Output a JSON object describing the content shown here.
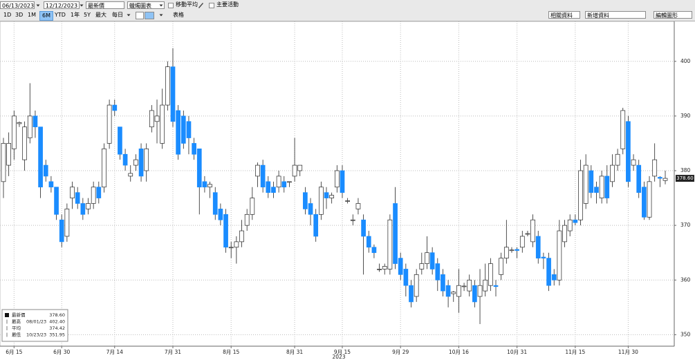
{
  "toolbar": {
    "start_date": "06/13/2023",
    "end_date": "12/12/2023",
    "field": "最新價",
    "chart_style": "蠟燭圖表",
    "options": [
      "移動平均",
      "主要活動"
    ],
    "periods": [
      "1D",
      "3D",
      "1M",
      "6M",
      "YTD",
      "1年",
      "5Y",
      "最大"
    ],
    "selected_period": "6M",
    "frequency": "每日",
    "table_button": "表格",
    "right_buttons": [
      "相關資料",
      "新增資料",
      "編輯圖形"
    ]
  },
  "chart_data": {
    "type": "candlestick",
    "categories": [
      null,
      null,
      "6月 15",
      null,
      null,
      null,
      null,
      null,
      null,
      null,
      null,
      "6月 30",
      null,
      null,
      null,
      null,
      null,
      null,
      null,
      null,
      null,
      "7月 14",
      null,
      null,
      null,
      null,
      null,
      null,
      null,
      null,
      null,
      null,
      "7月 31",
      null,
      null,
      null,
      null,
      null,
      null,
      null,
      null,
      null,
      null,
      "8月 15",
      null,
      null,
      null,
      null,
      null,
      null,
      null,
      null,
      null,
      null,
      null,
      "8月 31",
      null,
      null,
      null,
      null,
      null,
      null,
      null,
      null,
      "9月 15",
      null,
      null,
      null,
      null,
      null,
      null,
      null,
      null,
      null,
      null,
      "9月 29",
      null,
      null,
      null,
      null,
      null,
      null,
      null,
      null,
      null,
      null,
      "10月 16",
      null,
      null,
      null,
      null,
      null,
      null,
      null,
      null,
      null,
      null,
      "10月 31",
      null,
      null,
      null,
      null,
      null,
      null,
      null,
      null,
      null,
      null,
      "11月 15",
      null,
      null,
      null,
      null,
      null,
      null,
      null,
      null,
      null,
      "11月 30",
      null,
      null,
      null,
      null,
      null,
      null,
      null
    ],
    "year_label": "2023",
    "open": [
      378,
      381,
      384,
      388.6,
      382,
      386,
      390,
      388,
      381,
      378,
      377,
      371,
      368,
      375,
      376,
      374,
      373,
      374,
      377,
      377,
      385,
      392,
      388,
      383,
      379,
      381,
      384,
      380,
      388,
      389,
      385,
      392,
      399,
      391,
      390,
      389,
      385,
      384,
      378,
      377,
      376,
      373,
      372,
      366,
      366,
      367,
      370,
      372,
      379,
      381,
      378,
      377,
      377,
      378,
      378,
      379,
      380,
      376,
      374,
      372,
      372,
      376,
      375,
      377,
      380,
      374.5,
      371,
      373,
      371,
      368,
      366,
      362,
      362,
      362,
      374,
      364,
      362,
      359,
      357,
      362,
      363,
      365,
      363,
      361,
      359,
      357.5,
      357,
      358.9,
      358,
      359,
      357,
      358,
      359,
      359,
      361,
      364,
      365.5,
      365.6,
      366,
      368.5,
      367,
      368,
      364.2,
      364,
      361,
      360,
      367,
      369,
      371,
      371,
      374,
      380,
      377,
      375,
      379,
      378,
      381,
      384,
      389,
      381,
      381,
      377,
      371.5,
      379,
      378.8,
      378.2
    ],
    "high": [
      386,
      387,
      391,
      389,
      389,
      396,
      391,
      388,
      382,
      379,
      377,
      372,
      374,
      378,
      377,
      375,
      375,
      378,
      378,
      385,
      393,
      393,
      388,
      384,
      381,
      383,
      385,
      385,
      392,
      393,
      395,
      400,
      402.4,
      392,
      391,
      390,
      386,
      384,
      379,
      378,
      377,
      374,
      373,
      367,
      368,
      371,
      373,
      377,
      381.5,
      382,
      379,
      378,
      380,
      379,
      378,
      386,
      381,
      377,
      375,
      373,
      378,
      377,
      376,
      381,
      381,
      375,
      372,
      375,
      372,
      369,
      366.5,
      363,
      363,
      372,
      377,
      365,
      363,
      360,
      362,
      365,
      368,
      366,
      364,
      362,
      360,
      358,
      362,
      359.5,
      361,
      360,
      362,
      363,
      364,
      360,
      365,
      371,
      366,
      366,
      369,
      369,
      372,
      369,
      365,
      365,
      362,
      371,
      371,
      372,
      372,
      382,
      383,
      381,
      378,
      380,
      381,
      383,
      384,
      391.5,
      390,
      383,
      382,
      378,
      379,
      385,
      379,
      380
    ],
    "low": [
      375,
      379,
      382,
      388,
      380,
      385,
      386,
      375,
      378,
      376,
      371,
      366,
      367,
      373,
      373,
      371,
      372,
      373,
      374,
      376,
      384,
      390,
      382,
      380,
      378,
      380,
      378,
      378,
      387,
      385,
      384,
      391,
      388,
      382,
      384,
      383,
      382,
      372,
      376,
      375,
      371,
      370,
      365,
      364,
      363,
      366,
      369,
      371,
      377,
      376,
      375,
      375,
      376,
      376,
      377,
      378,
      379,
      372,
      370,
      367,
      371,
      373,
      374,
      376,
      375,
      374,
      370,
      372,
      361,
      365,
      364,
      361.5,
      361,
      361,
      362,
      360,
      357,
      355,
      356,
      361,
      362,
      361,
      358,
      357,
      355,
      356,
      354,
      358,
      357,
      355,
      351.95,
      357,
      358,
      357,
      360,
      363,
      365,
      364,
      365,
      368,
      366,
      363,
      362,
      358,
      359,
      359,
      366,
      368,
      370,
      370,
      373,
      375,
      374,
      374,
      374,
      377,
      380,
      383,
      377,
      380,
      375,
      371,
      371,
      378,
      377,
      377.5
    ],
    "close": [
      385,
      385,
      390,
      388.8,
      388,
      390,
      388,
      377,
      379,
      377,
      372,
      367,
      373,
      377,
      374,
      372,
      374,
      377,
      375,
      384,
      392,
      391,
      383,
      381,
      379.5,
      382,
      379,
      384,
      391,
      390,
      392,
      399,
      389,
      383,
      385,
      386,
      383,
      377,
      377,
      377.5,
      372,
      371,
      366,
      366,
      367,
      369,
      372,
      375,
      381,
      377,
      376,
      376,
      379,
      377,
      378,
      381,
      381,
      373,
      372,
      368,
      377,
      375,
      375.5,
      380,
      376,
      374.5,
      371,
      374,
      368,
      366,
      365,
      362,
      362.5,
      371,
      363,
      361,
      359,
      356,
      361,
      363,
      365,
      362,
      360,
      358,
      357,
      357.8,
      359,
      358.9,
      360,
      356,
      359,
      360,
      363,
      358.8,
      364,
      366,
      365.5,
      365.4,
      368,
      368.5,
      371,
      364,
      364,
      359,
      360,
      369,
      370,
      371,
      370.5,
      380,
      381,
      376,
      376,
      379,
      375,
      381,
      383,
      391,
      378,
      382,
      376,
      371.5,
      378,
      382,
      378.6,
      378.6
    ],
    "up_color": "#ffffff",
    "down_color": "#1a8cff",
    "outline_color": "#222222",
    "ylim": [
      347.9,
      407.3
    ],
    "yticks": [
      350,
      360,
      370,
      380,
      390,
      400
    ],
    "grid": true,
    "last_label": "378.60",
    "stats": [
      {
        "label": "最新價",
        "value": "378.60"
      },
      {
        "label": "最高",
        "date": "08/01/23",
        "value": "402.40"
      },
      {
        "label": "平均",
        "value": "374.42"
      },
      {
        "label": "最低",
        "date": "10/23/23",
        "value": "351.95"
      }
    ]
  }
}
